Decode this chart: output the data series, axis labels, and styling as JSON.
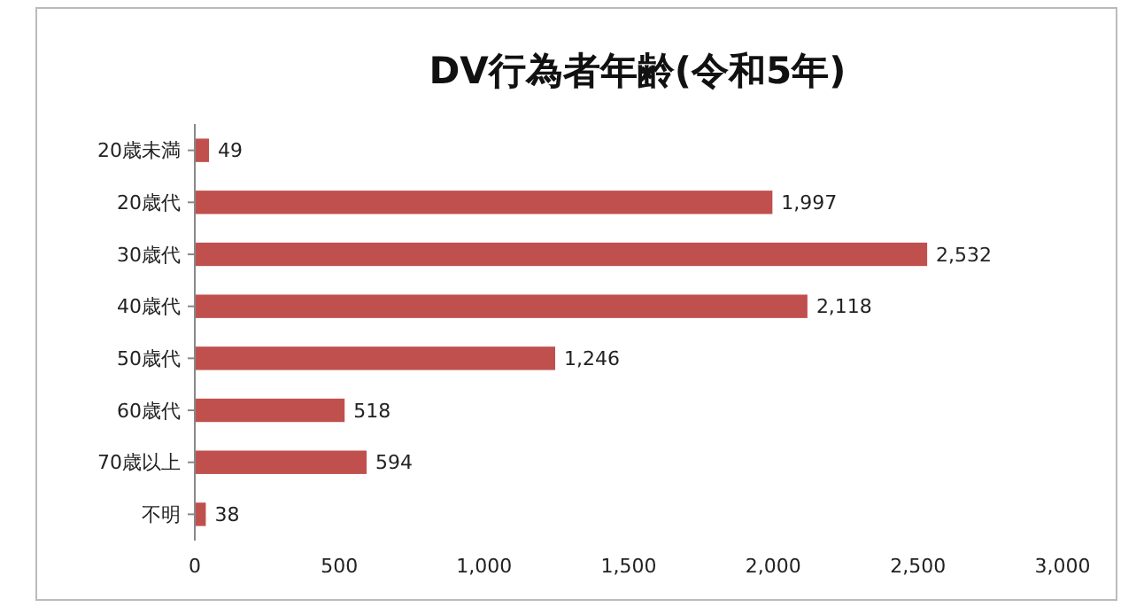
{
  "chart_data": {
    "type": "bar",
    "orientation": "horizontal",
    "title": "DV行為者年齢(令和5年)",
    "categories": [
      "20歳未満",
      "20歳代",
      "30歳代",
      "40歳代",
      "50歳代",
      "60歳代",
      "70歳以上",
      "不明"
    ],
    "values": [
      49,
      1997,
      2532,
      2118,
      1246,
      518,
      594,
      38
    ],
    "color": "#c0504d",
    "xlim": [
      0,
      3000
    ],
    "xticks": [
      0,
      500,
      {
        "value": 1000,
        "label": "1,000"
      },
      {
        "value": 1500,
        "label": "1,500"
      },
      {
        "value": 2000,
        "label": "2,000"
      },
      {
        "value": 2500,
        "label": "2,500"
      },
      {
        "value": 3000,
        "label": "3,000"
      }
    ],
    "value_labels": [
      "49",
      "1,997",
      "2,532",
      "2,118",
      "1,246",
      "518",
      "594",
      "38"
    ],
    "grid": false
  }
}
